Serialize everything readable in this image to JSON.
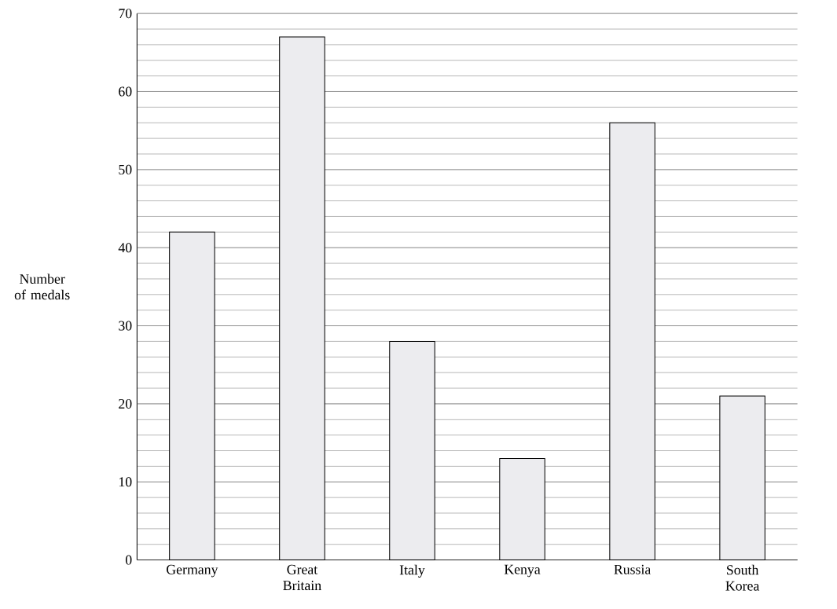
{
  "chart_data": {
    "type": "bar",
    "ylabel": "Number of medals",
    "categories": [
      "Germany",
      "Great Britain",
      "Italy",
      "Kenya",
      "Russia",
      "South Korea"
    ],
    "values": [
      42,
      67,
      28,
      13,
      56,
      21
    ],
    "color": "#ececef",
    "ylim": [
      0,
      70
    ],
    "yticks": [
      0,
      {
        "value": 2,
        "label": null
      },
      {
        "value": 4,
        "label": null
      },
      {
        "value": 6,
        "label": null
      },
      {
        "value": 8,
        "label": null
      },
      10,
      {
        "value": 12,
        "label": null
      },
      {
        "value": 14,
        "label": null
      },
      {
        "value": 16,
        "label": null
      },
      {
        "value": 18,
        "label": null
      },
      20,
      {
        "value": 22,
        "label": null
      },
      {
        "value": 24,
        "label": null
      },
      {
        "value": 26,
        "label": null
      },
      {
        "value": 28,
        "label": null
      },
      30,
      {
        "value": 32,
        "label": null
      },
      {
        "value": 34,
        "label": null
      },
      {
        "value": 36,
        "label": null
      },
      {
        "value": 38,
        "label": null
      },
      40,
      {
        "value": 42,
        "label": null
      },
      {
        "value": 44,
        "label": null
      },
      {
        "value": 46,
        "label": null
      },
      {
        "value": 48,
        "label": null
      },
      50,
      {
        "value": 52,
        "label": null
      },
      {
        "value": 54,
        "label": null
      },
      {
        "value": 56,
        "label": null
      },
      {
        "value": 58,
        "label": null
      },
      60,
      {
        "value": 62,
        "label": null
      },
      {
        "value": 64,
        "label": null
      },
      {
        "value": 66,
        "label": null
      },
      {
        "value": 68,
        "label": null
      },
      70
    ],
    "grid": "y"
  }
}
